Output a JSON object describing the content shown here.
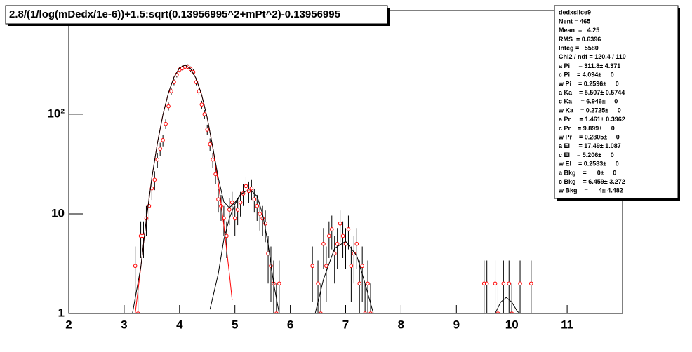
{
  "chart_data": {
    "type": "scatter",
    "title": "2.8/(1/log(mDedx/1e-6))+1.5:sqrt(0.13956995^2+mPt^2)-0.13956995",
    "log_y": true,
    "xlim": [
      2,
      12
    ],
    "ylim": [
      1,
      1100
    ],
    "xticks": [
      2,
      3,
      4,
      5,
      6,
      7,
      8,
      9,
      10,
      11
    ],
    "yticks": [
      1,
      10,
      {
        "value": 100,
        "label": "10²"
      }
    ],
    "series": [
      {
        "type": "scatter",
        "color": "#ff0000",
        "x": [
          3.2,
          3.25,
          3.3,
          3.35,
          3.4,
          3.45,
          3.5,
          3.55,
          3.6,
          3.65,
          3.7,
          3.75,
          3.8,
          3.85,
          3.9,
          3.95,
          4.0,
          4.05,
          4.1,
          4.15,
          4.2,
          4.25,
          4.3,
          4.35,
          4.4,
          4.45,
          4.5,
          4.55,
          4.6,
          4.65,
          4.7,
          4.75,
          4.8,
          4.85,
          4.9,
          4.95,
          5.0,
          5.05,
          5.1,
          5.15,
          5.2,
          5.25,
          5.3,
          5.35,
          5.4,
          5.45,
          5.5,
          5.55,
          5.6,
          5.65,
          5.7,
          5.75,
          5.8,
          6.4,
          6.5,
          6.55,
          6.6,
          6.65,
          6.7,
          6.75,
          6.8,
          6.85,
          6.9,
          6.95,
          7.0,
          7.05,
          7.1,
          7.15,
          7.2,
          7.25,
          7.3,
          7.35,
          7.4,
          7.45,
          9.5,
          9.55,
          9.7,
          9.75,
          9.85,
          9.95,
          10.0,
          10.15,
          10.35
        ],
        "values": [
          3,
          1,
          6,
          6,
          9,
          12,
          18,
          22,
          35,
          45,
          55,
          80,
          120,
          170,
          210,
          250,
          280,
          290,
          300,
          300,
          285,
          265,
          210,
          170,
          125,
          100,
          70,
          50,
          35,
          25,
          14,
          12,
          9,
          6,
          11,
          13,
          9,
          11,
          13,
          16,
          19,
          17,
          18,
          14,
          12,
          10,
          9,
          8,
          4,
          3,
          2,
          1,
          2,
          3,
          2,
          1,
          5,
          3,
          6,
          7,
          4,
          5,
          8,
          6,
          5,
          7,
          3,
          4,
          5,
          2,
          3,
          1,
          2,
          1,
          2,
          2,
          2,
          1,
          2,
          2,
          1,
          2,
          2
        ],
        "errors": [
          1.7,
          1,
          2.4,
          2.4,
          3,
          3.5,
          4.2,
          4.7,
          5.9,
          6.7,
          7.4,
          8.9,
          11,
          13,
          14.5,
          15.8,
          16.7,
          17,
          17.3,
          17.3,
          16.9,
          16.3,
          14.5,
          13,
          11.2,
          10,
          8.4,
          7.1,
          5.9,
          5,
          3.7,
          3.5,
          3,
          2.4,
          3.3,
          3.6,
          3,
          3.3,
          3.6,
          4,
          4.4,
          4.1,
          4.2,
          3.7,
          3.5,
          3.2,
          3,
          2.8,
          2,
          1.7,
          1.4,
          1,
          1.4,
          1.7,
          1.4,
          1,
          2.2,
          1.7,
          2.4,
          2.6,
          2,
          2.2,
          2.8,
          2.4,
          2.2,
          2.6,
          1.7,
          2,
          2.2,
          1.4,
          1.7,
          1,
          1.4,
          1,
          1.4,
          1.4,
          1.4,
          1,
          1.4,
          1.4,
          1,
          1.4,
          1.4
        ]
      },
      {
        "type": "line",
        "color": "#ff0000",
        "x": [
          3.2,
          3.3,
          3.4,
          3.5,
          3.6,
          3.7,
          3.8,
          3.9,
          4.0,
          4.1,
          4.2,
          4.3,
          4.4,
          4.5,
          4.6,
          4.7,
          4.8,
          4.9,
          4.95
        ],
        "values": [
          1.0,
          2.9,
          8.76,
          22.8,
          51.0,
          98.5,
          164,
          236,
          292,
          311.7,
          287,
          228,
          156,
          91.8,
          46.6,
          20.5,
          7.72,
          2.52,
          1.36
        ]
      },
      {
        "type": "line",
        "color": "#000000",
        "x": [
          3.15,
          3.3,
          3.4,
          3.5,
          3.6,
          3.7,
          3.8,
          3.9,
          4.0,
          4.1,
          4.2,
          4.3,
          4.4,
          4.5,
          4.6,
          4.7,
          4.8,
          4.9,
          5.0,
          5.1,
          5.2,
          5.3,
          5.4,
          5.5,
          5.6,
          5.7,
          5.8,
          null,
          4.55,
          4.7,
          4.8,
          4.9,
          5.0,
          5.1,
          5.2,
          null,
          6.45,
          6.6,
          6.8,
          7.0,
          7.2,
          7.35,
          7.5,
          null,
          9.7,
          9.8,
          9.9,
          10.0,
          10.1,
          10.15
        ],
        "values": [
          1.0,
          2.9,
          8.8,
          22.8,
          51,
          98.5,
          164,
          236,
          292,
          312,
          287,
          228,
          156,
          92,
          47,
          23,
          13.2,
          11.5,
          13,
          15.6,
          17,
          17,
          15,
          10,
          5,
          2,
          1,
          null,
          1.1,
          2.5,
          5.5,
          9,
          12.5,
          15.5,
          17,
          null,
          1,
          2.2,
          4.5,
          5.3,
          3.8,
          2,
          1,
          null,
          1,
          1.3,
          1.45,
          1.3,
          1.05,
          1
        ]
      }
    ]
  },
  "stats": {
    "title": "dedxslice9",
    "lines": [
      "Nent = 465",
      "Mean  =   4.25",
      "RMS  = 0.6396",
      "Integ =   5580",
      "Chi2 / ndf = 120.4 / 110",
      "a Pi     = 311.8± 4.371",
      "c Pi    = 4.094±     0",
      "w Pi    = 0.2596±     0",
      "a Ka    = 5.507± 0.5744",
      "c Ka     = 6.946±     0",
      "w Ka    = 0.2725±     0",
      "a Pr     = 1.461± 0.3962",
      "c Pr    = 9.899±     0",
      "w Pr    = 0.2805±     0",
      "a El     = 17.49± 1.087",
      "c El    = 5.206±     0",
      "w El    = 0.2583±     0",
      "a Bkg    =      0±     0",
      "c Bkg    = 6.459± 3.272",
      "w Bkg    =      4± 4.482"
    ]
  }
}
